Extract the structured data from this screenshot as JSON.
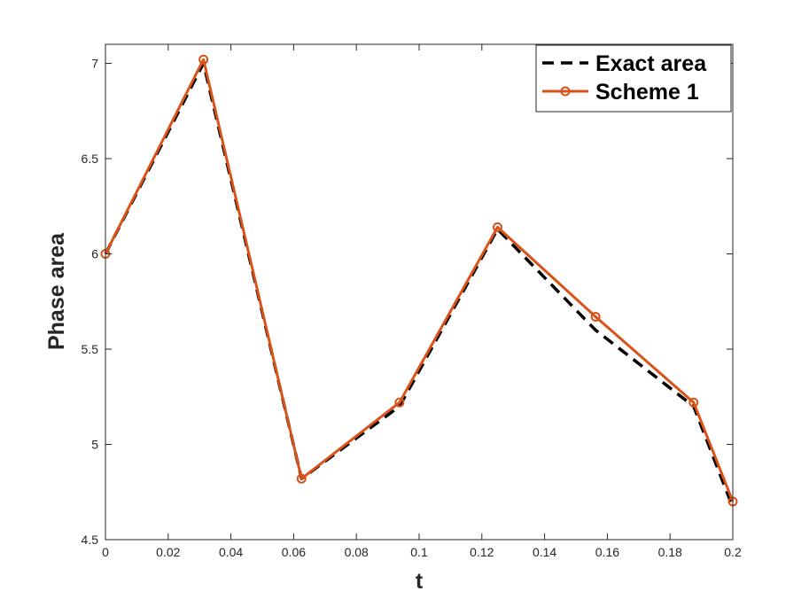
{
  "chart_data": {
    "type": "line",
    "title": "",
    "xlabel": "t",
    "ylabel": "Phase area",
    "xlim": [
      0,
      0.2
    ],
    "ylim": [
      4.5,
      7.1
    ],
    "xticks": [
      0,
      0.02,
      0.04,
      0.06,
      0.08,
      0.1,
      0.12,
      0.14,
      0.16,
      0.18,
      0.2
    ],
    "xtick_labels": [
      "0",
      "0.02",
      "0.04",
      "0.06",
      "0.08",
      "0.1",
      "0.12",
      "0.14",
      "0.16",
      "0.18",
      "0.2"
    ],
    "yticks": [
      4.5,
      5,
      5.5,
      6,
      6.5,
      7
    ],
    "ytick_labels": [
      "4.5",
      "5",
      "5.5",
      "6",
      "6.5",
      "7"
    ],
    "grid": false,
    "legend_position": "top-right",
    "series": [
      {
        "name": "Exact area",
        "style": "dashed",
        "color": "#000000",
        "markers": false,
        "x": [
          0,
          0.03125,
          0.0625,
          0.09375,
          0.125,
          0.15625,
          0.1875,
          0.2
        ],
        "y": [
          6.0,
          7.0,
          4.82,
          5.2,
          6.13,
          5.6,
          5.2,
          4.67
        ]
      },
      {
        "name": "Scheme 1",
        "style": "solid",
        "color": "#d95319",
        "markers": true,
        "x": [
          0,
          0.03125,
          0.0625,
          0.09375,
          0.125,
          0.15625,
          0.1875,
          0.2
        ],
        "y": [
          6.0,
          7.02,
          4.82,
          5.22,
          6.14,
          5.67,
          5.22,
          4.7
        ]
      }
    ]
  }
}
